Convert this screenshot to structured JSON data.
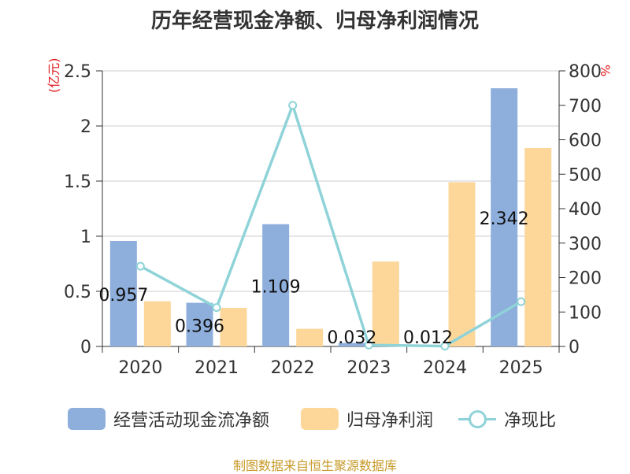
{
  "chart_data": {
    "type": "bar",
    "title": "历年经营现金净额、归母净利润情况",
    "categories": [
      "2020",
      "2021",
      "2022",
      "2023",
      "2024",
      "2025"
    ],
    "y_left": {
      "unit": "(亿元)",
      "range": [
        0,
        2.5
      ],
      "ticks": [
        "0",
        "0.5",
        "1",
        "1.5",
        "2",
        "2.5"
      ]
    },
    "y_right": {
      "unit": "%",
      "range": [
        0,
        800
      ],
      "ticks": [
        "0",
        "100",
        "200",
        "300",
        "400",
        "500",
        "600",
        "700",
        "800"
      ]
    },
    "grid": true,
    "legend_position": "bottom",
    "series": [
      {
        "name": "经营活动现金流净额",
        "type": "bar",
        "axis": "left",
        "color": "#8eaedc",
        "values": [
          0.957,
          0.396,
          1.109,
          0.032,
          0.012,
          2.342
        ],
        "labels": [
          "0.957",
          "0.396",
          "1.109",
          "0.032",
          "0.012",
          "2.342"
        ]
      },
      {
        "name": "归母净利润",
        "type": "bar",
        "axis": "left",
        "color": "#fdd79a",
        "values": [
          0.41,
          0.35,
          0.16,
          0.77,
          1.49,
          1.8
        ]
      },
      {
        "name": "净现比",
        "type": "line",
        "axis": "right",
        "color": "#8fd3d8",
        "values": [
          233,
          113,
          700,
          4,
          1,
          130
        ]
      }
    ]
  },
  "source": "制图数据来自恒生聚源数据库"
}
